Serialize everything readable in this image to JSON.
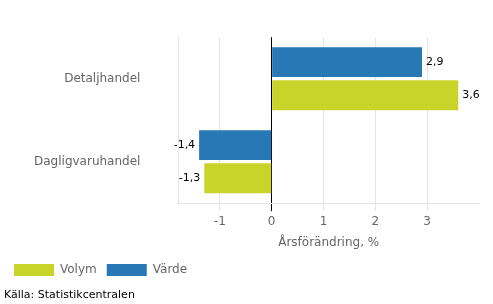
{
  "chart_data": {
    "type": "bar",
    "orientation": "horizontal",
    "categories": [
      "Detaljhandel",
      "Dagligvaruhandel"
    ],
    "series": [
      {
        "name": "Volym",
        "color": "#c8d42a",
        "values": [
          3.6,
          -1.3
        ],
        "value_labels": [
          "3,6",
          "-1,3"
        ]
      },
      {
        "name": "Värde",
        "color": "#2878b5",
        "values": [
          2.9,
          -1.4
        ],
        "value_labels": [
          "2,9",
          "-1,4"
        ]
      }
    ],
    "xlabel": "Årsförändring, %",
    "xlim": [
      -1.8,
      4.0
    ],
    "xticks": [
      -1,
      0,
      1,
      2,
      3
    ],
    "grid": true,
    "legend": "bottom",
    "data_labels": true,
    "annotation": "Källa: Statistikcentralen"
  }
}
